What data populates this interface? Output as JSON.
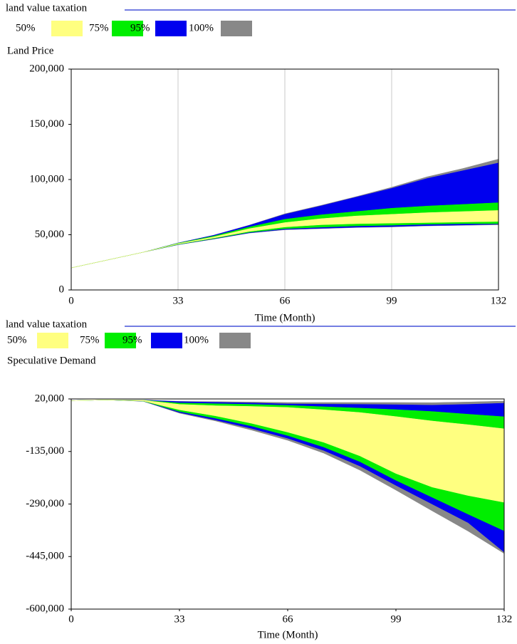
{
  "chart_data": [
    {
      "type": "band",
      "title": "land value taxation",
      "y_label": "Land Price",
      "x_label": "Time (Month)",
      "x": [
        0,
        11,
        22,
        33,
        44,
        55,
        66,
        77,
        88,
        99,
        110,
        121,
        132
      ],
      "xlim": [
        0,
        132
      ],
      "xticks": [
        0,
        33,
        66,
        99,
        132
      ],
      "ylim": [
        0,
        200000
      ],
      "yticks": [
        0,
        {
          "value": 50000,
          "label": "50,000"
        },
        {
          "value": 100000,
          "label": "100,000"
        },
        {
          "value": 150000,
          "label": "150,000"
        },
        {
          "value": 200000,
          "label": "200,000"
        }
      ],
      "grid": true,
      "line_color": "#2030d0",
      "series": [
        {
          "name": "50%",
          "color": "#ffff80",
          "lower": [
            20000,
            27000,
            34000,
            41500,
            47000,
            53000,
            57000,
            59000,
            60000,
            60500,
            61000,
            61500,
            62000
          ],
          "upper": [
            20000,
            27000,
            34000,
            42000,
            48000,
            55500,
            61000,
            64500,
            67000,
            68500,
            70000,
            71000,
            72000
          ]
        },
        {
          "name": "75%",
          "color": "#00ee00",
          "lower": [
            20000,
            27000,
            34000,
            41200,
            46500,
            52200,
            55500,
            56800,
            58000,
            58600,
            59500,
            60000,
            60000
          ],
          "upper": [
            20000,
            27000,
            34000,
            42300,
            48800,
            57000,
            64000,
            68000,
            71000,
            74000,
            76000,
            77500,
            79000
          ]
        },
        {
          "name": "95%",
          "color": "#0000ee",
          "lower": [
            20000,
            27000,
            34000,
            41000,
            46200,
            51700,
            54800,
            55800,
            56800,
            57400,
            58300,
            58800,
            59500
          ],
          "upper": [
            20000,
            27000,
            34000,
            42500,
            49500,
            58500,
            68500,
            76000,
            84000,
            92000,
            101000,
            108000,
            115000
          ]
        },
        {
          "name": "100%",
          "color": "#888888",
          "lower": [
            20000,
            27000,
            34000,
            41000,
            46000,
            51500,
            54500,
            55500,
            56500,
            57000,
            58000,
            58500,
            59000
          ],
          "upper": [
            20000,
            27000,
            34000,
            42500,
            49600,
            58700,
            69000,
            76500,
            84500,
            93000,
            102500,
            110000,
            118500
          ]
        }
      ]
    },
    {
      "type": "band",
      "title": "land value taxation",
      "y_label": "Speculative Demand",
      "x_label": "Time (Month)",
      "x": [
        0,
        11,
        22,
        33,
        44,
        55,
        66,
        77,
        88,
        99,
        110,
        121,
        132
      ],
      "xlim": [
        0,
        132
      ],
      "xticks": [
        0,
        33,
        66,
        99,
        132
      ],
      "ylim": [
        -600000,
        20000
      ],
      "yticks": [
        {
          "value": -600000,
          "label": "-600,000"
        },
        {
          "value": -445000,
          "label": "-445,000"
        },
        {
          "value": -290000,
          "label": "-290,000"
        },
        {
          "value": -135000,
          "label": "-135,000"
        },
        {
          "value": 20000,
          "label": "20,000"
        }
      ],
      "grid": false,
      "line_color": "#2030d0",
      "series": [
        {
          "name": "50%",
          "color": "#ffff80",
          "lower": [
            15000,
            17000,
            14000,
            -12000,
            -30000,
            -52000,
            -78000,
            -108000,
            -148000,
            -200000,
            -240000,
            -265000,
            -285000
          ],
          "upper": [
            15000,
            17000,
            16000,
            4000,
            0,
            -2000,
            -5000,
            -12000,
            -20000,
            -32000,
            -45000,
            -56000,
            -68000
          ]
        },
        {
          "name": "75%",
          "color": "#00ee00",
          "lower": [
            15000,
            17000,
            13500,
            -17000,
            -37000,
            -60000,
            -88000,
            -122000,
            -165000,
            -220000,
            -270000,
            -320000,
            -369000
          ],
          "upper": [
            15000,
            17000,
            16300,
            8000,
            6000,
            4000,
            1000,
            -3000,
            -7000,
            -11500,
            -17000,
            -25000,
            -32500
          ]
        },
        {
          "name": "95%",
          "color": "#0000ee",
          "lower": [
            15000,
            17000,
            13200,
            -20000,
            -42000,
            -67000,
            -96000,
            -132000,
            -178000,
            -235000,
            -290000,
            -345000,
            -432000
          ],
          "upper": [
            15000,
            17000,
            16600,
            12000,
            10000,
            8000,
            5300,
            4500,
            4000,
            3000,
            1500,
            4000,
            7400
          ]
        },
        {
          "name": "100%",
          "color": "#888888",
          "lower": [
            15000,
            17000,
            13000,
            -22000,
            -45000,
            -72000,
            -102000,
            -140000,
            -190000,
            -249000,
            -310000,
            -370000,
            -436000
          ],
          "upper": [
            15000,
            17000,
            16800,
            13000,
            12000,
            11000,
            9500,
            9500,
            9500,
            9500,
            9000,
            11000,
            13700
          ]
        }
      ]
    }
  ]
}
